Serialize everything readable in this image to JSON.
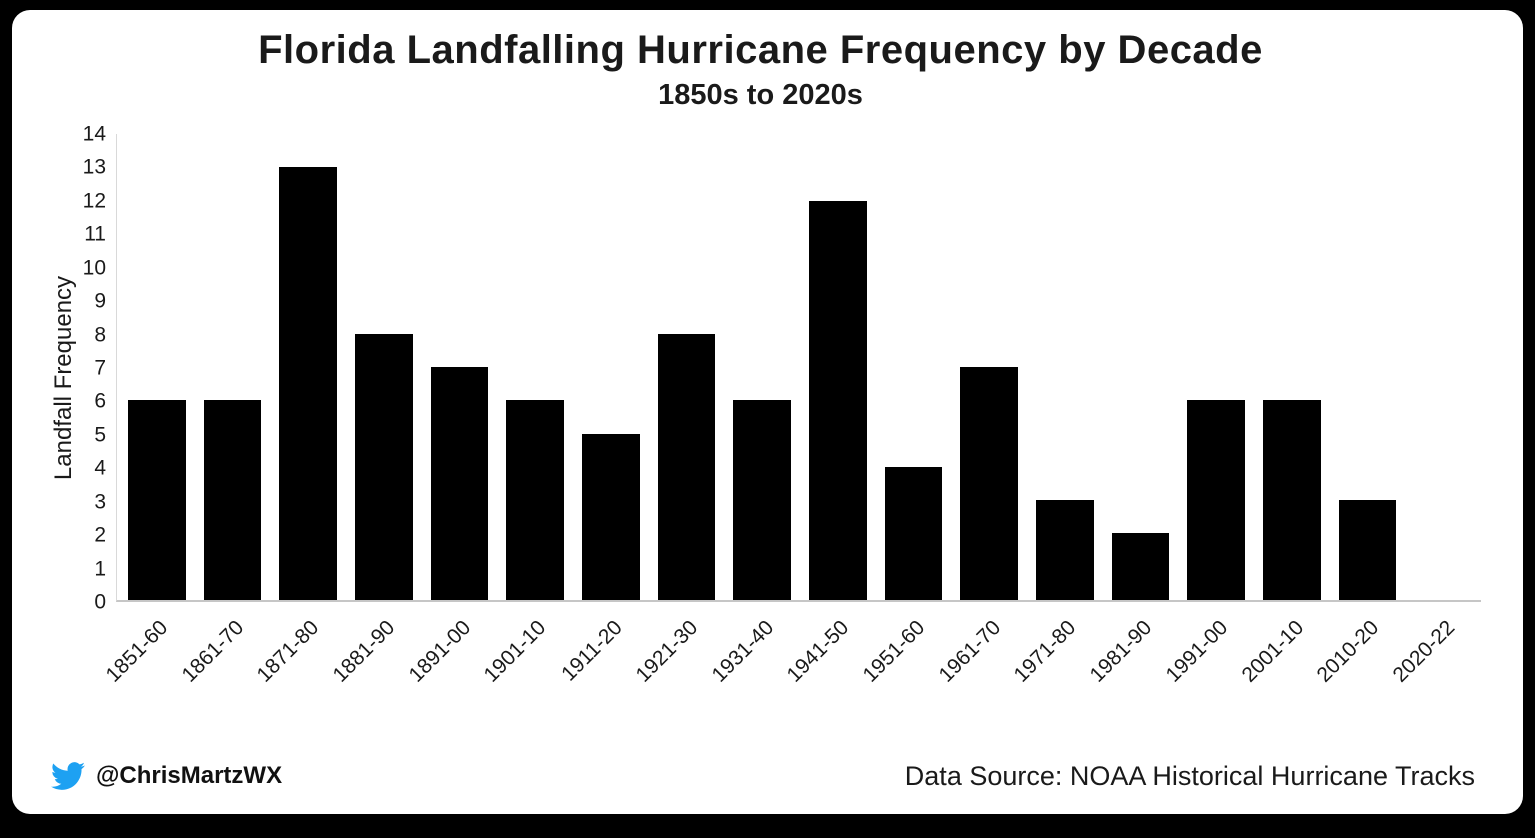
{
  "chart_data": {
    "type": "bar",
    "title": "Florida Landfalling Hurricane Frequency by Decade",
    "subtitle": "1850s to 2020s",
    "ylabel": "Landfall Frequency",
    "xlabel": "",
    "categories": [
      "1851-60",
      "1861-70",
      "1871-80",
      "1881-90",
      "1891-00",
      "1901-10",
      "1911-20",
      "1921-30",
      "1931-40",
      "1941-50",
      "1951-60",
      "1961-70",
      "1971-80",
      "1981-90",
      "1991-00",
      "2001-10",
      "2010-20",
      "2020-22"
    ],
    "values": [
      6,
      6,
      13,
      8,
      7,
      6,
      5,
      8,
      6,
      12,
      4,
      7,
      3,
      2,
      6,
      6,
      3,
      0
    ],
    "ylim": [
      0,
      14
    ],
    "ytick_step": 1,
    "bar_color": "#000000",
    "grid": false,
    "legend_position": "none"
  },
  "footer": {
    "handle": "@ChrisMartzWX",
    "source_text": "Data Source: NOAA Historical Hurricane Tracks",
    "twitter_icon_color": "#1DA1F2"
  }
}
